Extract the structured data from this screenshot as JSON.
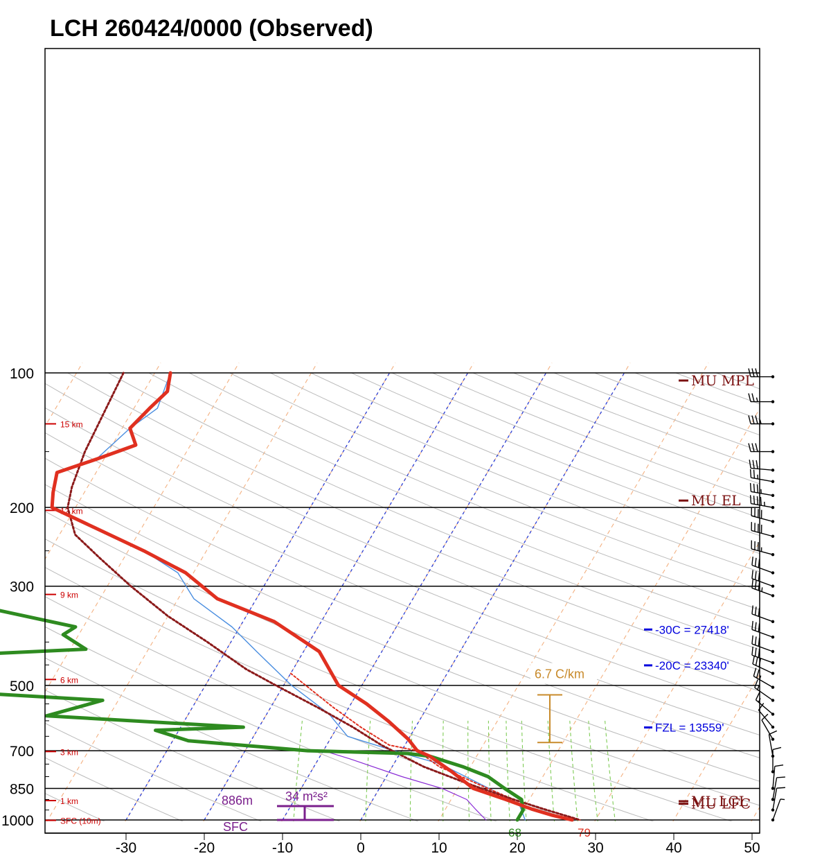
{
  "chart_data": {
    "type": "line",
    "title": "LCH  260424/0000  (Observed)",
    "xlim": [
      -40,
      50
    ],
    "pressure_ticks": [
      100,
      200,
      300,
      500,
      700,
      850,
      1000
    ],
    "x_ticks": [
      -30,
      -20,
      -10,
      0,
      10,
      20,
      30,
      40,
      50
    ],
    "height_labels": [
      {
        "label": "15 km",
        "p": 130
      },
      {
        "label": "12 km",
        "p": 203
      },
      {
        "label": "9 km",
        "p": 313
      },
      {
        "label": "6 km",
        "p": 485
      },
      {
        "label": "3 km",
        "p": 703
      },
      {
        "label": "1 km",
        "p": 905
      },
      {
        "label": "SFC (10m)",
        "p": 1002
      }
    ],
    "series": [
      {
        "role": "temperature",
        "color": "#e03020",
        "points": [
          [
            -58,
            100
          ],
          [
            -57,
            110
          ],
          [
            -58,
            120
          ],
          [
            -59,
            133
          ],
          [
            -57,
            145
          ],
          [
            -61,
            156
          ],
          [
            -65,
            167
          ],
          [
            -64,
            185
          ],
          [
            -63,
            200
          ],
          [
            -56,
            222
          ],
          [
            -48,
            250
          ],
          [
            -41,
            280
          ],
          [
            -35,
            320
          ],
          [
            -26,
            360
          ],
          [
            -18,
            420
          ],
          [
            -13,
            500
          ],
          [
            -8,
            550
          ],
          [
            -4,
            600
          ],
          [
            0,
            660
          ],
          [
            2,
            700
          ],
          [
            4,
            720
          ],
          [
            8,
            780
          ],
          [
            12,
            850
          ],
          [
            17,
            900
          ],
          [
            21,
            945
          ],
          [
            24,
            975
          ],
          [
            27,
            1000
          ]
        ]
      },
      {
        "role": "virtual-temperature",
        "color": "#4a8ee0",
        "points": [
          [
            -58,
            100
          ],
          [
            -57,
            120
          ],
          [
            -59,
            133
          ],
          [
            -61,
            156
          ],
          [
            -65,
            167
          ],
          [
            -64,
            185
          ],
          [
            -63,
            200
          ],
          [
            -56,
            222
          ],
          [
            -48,
            250
          ],
          [
            -42,
            280
          ],
          [
            -38,
            320
          ],
          [
            -31,
            370
          ],
          [
            -26,
            420
          ],
          [
            -19,
            500
          ],
          [
            -12,
            580
          ],
          [
            -8,
            650
          ],
          [
            -1,
            700
          ],
          [
            6,
            750
          ],
          [
            14,
            850
          ],
          [
            19,
            920
          ],
          [
            21,
            1000
          ]
        ]
      },
      {
        "role": "dewpoint",
        "color": "#2e8b20",
        "points": [
          [
            -84,
            100
          ],
          [
            -85,
            110
          ],
          [
            -85,
            120
          ],
          [
            -84,
            133
          ],
          [
            -83,
            145
          ],
          [
            -86,
            156
          ],
          [
            -85,
            175
          ],
          [
            -84,
            190
          ],
          [
            -82,
            200
          ],
          [
            -80,
            220
          ],
          [
            -75,
            250
          ],
          [
            -70,
            280
          ],
          [
            -68,
            300
          ],
          [
            -62,
            340
          ],
          [
            -51,
            370
          ],
          [
            -52,
            385
          ],
          [
            -48,
            415
          ],
          [
            -78,
            440
          ],
          [
            -75,
            490
          ],
          [
            -76,
            500
          ],
          [
            -42,
            540
          ],
          [
            -48,
            585
          ],
          [
            -22,
            620
          ],
          [
            -33,
            630
          ],
          [
            -28,
            665
          ],
          [
            -12,
            700
          ],
          [
            1,
            710
          ],
          [
            4,
            720
          ],
          [
            9,
            760
          ],
          [
            13,
            800
          ],
          [
            16,
            850
          ],
          [
            19,
            900
          ],
          [
            20,
            950
          ],
          [
            20,
            1000
          ]
        ]
      },
      {
        "role": "parcel-mu-virtual",
        "color": "#8b1a1a",
        "points": [
          [
            -64,
            100
          ],
          [
            -63,
            150
          ],
          [
            -62,
            180
          ],
          [
            -61,
            200
          ],
          [
            -58,
            230
          ],
          [
            -53,
            260
          ],
          [
            -47,
            300
          ],
          [
            -40,
            350
          ],
          [
            -33,
            400
          ],
          [
            -26,
            460
          ],
          [
            -21,
            500
          ],
          [
            -14,
            560
          ],
          [
            -8,
            620
          ],
          [
            -3,
            680
          ],
          [
            4,
            760
          ],
          [
            11,
            830
          ],
          [
            18,
            900
          ],
          [
            23,
            950
          ],
          [
            28,
            1000
          ]
        ]
      },
      {
        "role": "parcel-ml",
        "color": "#e03020",
        "points": [
          [
            -20,
            470
          ],
          [
            -12,
            560
          ],
          [
            -7,
            620
          ],
          [
            -2,
            680
          ],
          [
            2,
            700
          ],
          [
            6,
            760
          ],
          [
            13,
            840
          ],
          [
            18,
            900
          ],
          [
            23,
            950
          ],
          [
            28,
            1000
          ]
        ]
      },
      {
        "role": "wetbulb",
        "color": "#8a2bd6",
        "points": [
          [
            -10,
            700
          ],
          [
            -6,
            730
          ],
          [
            2,
            800
          ],
          [
            8,
            850
          ],
          [
            12,
            900
          ],
          [
            14,
            950
          ],
          [
            16,
            1000
          ]
        ]
      }
    ],
    "levels": [
      {
        "label": "MU MPL",
        "p": 104
      },
      {
        "label": "MU EL",
        "p": 193
      },
      {
        "label": "ML  LCL",
        "p": 908
      },
      {
        "label": "MU LFC",
        "p": 920
      }
    ],
    "isotherm_levels": [
      {
        "label": "-30C = 27418'",
        "p": 375
      },
      {
        "label": "-20C = 23340'",
        "p": 451
      },
      {
        "label": "FZL = 13559'",
        "p": 621
      }
    ],
    "lapse_rate": {
      "label": "6.7 C/km",
      "p_top": 525,
      "p_bottom": 671
    },
    "effective_inflow": {
      "top_label": "886m",
      "bottom_label": "SFC",
      "srh_label": "34 m²s²",
      "p_top": 905,
      "p_bottom": 1000
    },
    "surface": {
      "temperature": "79",
      "dewpoint": "68"
    },
    "wind_barbs": [
      {
        "p": 102,
        "speed": 30,
        "dir": 270
      },
      {
        "p": 116,
        "speed": 25,
        "dir": 270
      },
      {
        "p": 130,
        "speed": 35,
        "dir": 270
      },
      {
        "p": 150,
        "speed": 30,
        "dir": 270
      },
      {
        "p": 165,
        "speed": 30,
        "dir": 265
      },
      {
        "p": 175,
        "speed": 25,
        "dir": 260
      },
      {
        "p": 188,
        "speed": 35,
        "dir": 260
      },
      {
        "p": 200,
        "speed": 45,
        "dir": 260
      },
      {
        "p": 215,
        "speed": 40,
        "dir": 255
      },
      {
        "p": 232,
        "speed": 40,
        "dir": 255
      },
      {
        "p": 255,
        "speed": 35,
        "dir": 255
      },
      {
        "p": 280,
        "speed": 30,
        "dir": 250
      },
      {
        "p": 300,
        "speed": 30,
        "dir": 250
      },
      {
        "p": 315,
        "speed": 35,
        "dir": 250
      },
      {
        "p": 360,
        "speed": 30,
        "dir": 250
      },
      {
        "p": 390,
        "speed": 30,
        "dir": 250
      },
      {
        "p": 420,
        "speed": 30,
        "dir": 250
      },
      {
        "p": 445,
        "speed": 30,
        "dir": 250
      },
      {
        "p": 470,
        "speed": 30,
        "dir": 245
      },
      {
        "p": 505,
        "speed": 25,
        "dir": 240
      },
      {
        "p": 540,
        "speed": 15,
        "dir": 235
      },
      {
        "p": 580,
        "speed": 15,
        "dir": 230
      },
      {
        "p": 620,
        "speed": 10,
        "dir": 220
      },
      {
        "p": 660,
        "speed": 10,
        "dir": 210
      },
      {
        "p": 720,
        "speed": 10,
        "dir": 190
      },
      {
        "p": 780,
        "speed": 10,
        "dir": 180
      },
      {
        "p": 850,
        "speed": 10,
        "dir": 175
      },
      {
        "p": 900,
        "speed": 10,
        "dir": 170
      },
      {
        "p": 950,
        "speed": 10,
        "dir": 170
      },
      {
        "p": 1000,
        "speed": 5,
        "dir": 160
      }
    ]
  }
}
